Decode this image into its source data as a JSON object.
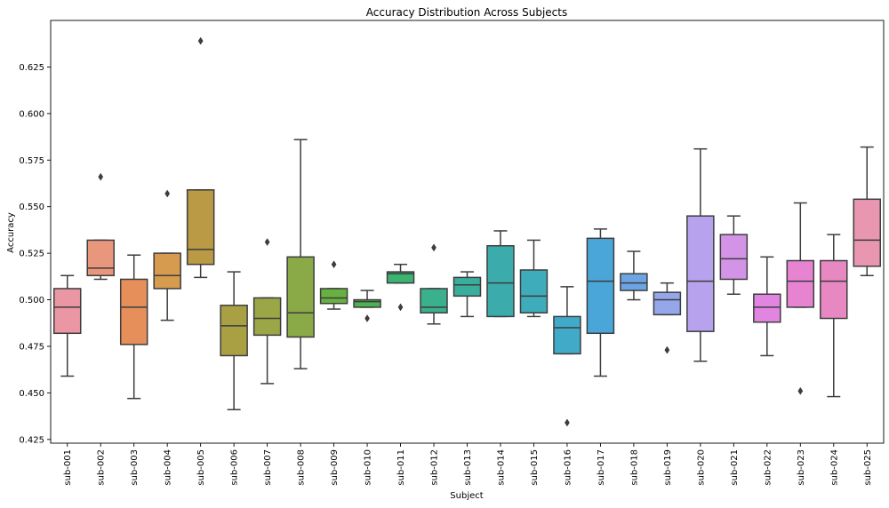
{
  "chart_data": {
    "type": "box",
    "title": "Accuracy Distribution Across Subjects",
    "xlabel": "Subject",
    "ylabel": "Accuracy",
    "ylim": [
      0.423,
      0.65
    ],
    "yticks": [
      0.425,
      0.45,
      0.475,
      0.5,
      0.525,
      0.55,
      0.575,
      0.6,
      0.625
    ],
    "yticklabels": [
      "0.425",
      "0.450",
      "0.475",
      "0.500",
      "0.525",
      "0.550",
      "0.575",
      "0.600",
      "0.625"
    ],
    "grid": false,
    "boxes": [
      {
        "label": "sub-001",
        "color": "#ea96a3",
        "whislo": 0.459,
        "q1": 0.482,
        "med": 0.496,
        "q3": 0.506,
        "whishi": 0.513,
        "fliers": []
      },
      {
        "label": "sub-002",
        "color": "#e8977c",
        "whislo": 0.511,
        "q1": 0.513,
        "med": 0.517,
        "q3": 0.532,
        "whishi": 0.532,
        "fliers": [
          0.566
        ]
      },
      {
        "label": "sub-003",
        "color": "#e68f5a",
        "whislo": 0.447,
        "q1": 0.476,
        "med": 0.496,
        "q3": 0.511,
        "whishi": 0.524,
        "fliers": []
      },
      {
        "label": "sub-004",
        "color": "#d79b4f",
        "whislo": 0.489,
        "q1": 0.506,
        "med": 0.513,
        "q3": 0.525,
        "whishi": 0.525,
        "fliers": [
          0.557
        ]
      },
      {
        "label": "sub-005",
        "color": "#bb9a45",
        "whislo": 0.512,
        "q1": 0.519,
        "med": 0.527,
        "q3": 0.559,
        "whishi": 0.559,
        "fliers": [
          0.639
        ]
      },
      {
        "label": "sub-006",
        "color": "#a9a043",
        "whislo": 0.441,
        "q1": 0.47,
        "med": 0.486,
        "q3": 0.497,
        "whishi": 0.515,
        "fliers": []
      },
      {
        "label": "sub-007",
        "color": "#9ba646",
        "whislo": 0.455,
        "q1": 0.481,
        "med": 0.49,
        "q3": 0.501,
        "whishi": 0.501,
        "fliers": [
          0.531
        ]
      },
      {
        "label": "sub-008",
        "color": "#89aa47",
        "whislo": 0.463,
        "q1": 0.48,
        "med": 0.493,
        "q3": 0.523,
        "whishi": 0.586,
        "fliers": []
      },
      {
        "label": "sub-009",
        "color": "#68b042",
        "whislo": 0.495,
        "q1": 0.498,
        "med": 0.501,
        "q3": 0.506,
        "whishi": 0.506,
        "fliers": [
          0.519
        ]
      },
      {
        "label": "sub-010",
        "color": "#4db24f",
        "whislo": 0.496,
        "q1": 0.496,
        "med": 0.499,
        "q3": 0.5,
        "whishi": 0.505,
        "fliers": [
          0.49
        ]
      },
      {
        "label": "sub-011",
        "color": "#3cb371",
        "whislo": 0.509,
        "q1": 0.509,
        "med": 0.514,
        "q3": 0.515,
        "whishi": 0.519,
        "fliers": [
          0.496
        ]
      },
      {
        "label": "sub-012",
        "color": "#3ab08c",
        "whislo": 0.487,
        "q1": 0.493,
        "med": 0.496,
        "q3": 0.506,
        "whishi": 0.506,
        "fliers": [
          0.528
        ]
      },
      {
        "label": "sub-013",
        "color": "#3aae9c",
        "whislo": 0.491,
        "q1": 0.502,
        "med": 0.508,
        "q3": 0.512,
        "whishi": 0.515,
        "fliers": []
      },
      {
        "label": "sub-014",
        "color": "#3babab",
        "whislo": 0.491,
        "q1": 0.491,
        "med": 0.509,
        "q3": 0.529,
        "whishi": 0.537,
        "fliers": []
      },
      {
        "label": "sub-015",
        "color": "#3eacbb",
        "whislo": 0.491,
        "q1": 0.493,
        "med": 0.502,
        "q3": 0.516,
        "whishi": 0.532,
        "fliers": []
      },
      {
        "label": "sub-016",
        "color": "#41aac9",
        "whislo": 0.471,
        "q1": 0.471,
        "med": 0.485,
        "q3": 0.491,
        "whishi": 0.507,
        "fliers": [
          0.434
        ]
      },
      {
        "label": "sub-017",
        "color": "#4aa6d8",
        "whislo": 0.459,
        "q1": 0.482,
        "med": 0.51,
        "q3": 0.533,
        "whishi": 0.538,
        "fliers": []
      },
      {
        "label": "sub-018",
        "color": "#6da5e4",
        "whislo": 0.5,
        "q1": 0.505,
        "med": 0.509,
        "q3": 0.514,
        "whishi": 0.526,
        "fliers": []
      },
      {
        "label": "sub-019",
        "color": "#95a6ea",
        "whislo": 0.492,
        "q1": 0.492,
        "med": 0.5,
        "q3": 0.504,
        "whishi": 0.509,
        "fliers": [
          0.473
        ]
      },
      {
        "label": "sub-020",
        "color": "#b7a3ed",
        "whislo": 0.467,
        "q1": 0.483,
        "med": 0.51,
        "q3": 0.545,
        "whishi": 0.581,
        "fliers": []
      },
      {
        "label": "sub-021",
        "color": "#d394e8",
        "whislo": 0.503,
        "q1": 0.511,
        "med": 0.522,
        "q3": 0.535,
        "whishi": 0.545,
        "fliers": []
      },
      {
        "label": "sub-022",
        "color": "#e285e0",
        "whislo": 0.47,
        "q1": 0.488,
        "med": 0.496,
        "q3": 0.503,
        "whishi": 0.523,
        "fliers": []
      },
      {
        "label": "sub-023",
        "color": "#e784d1",
        "whislo": 0.496,
        "q1": 0.496,
        "med": 0.51,
        "q3": 0.521,
        "whishi": 0.552,
        "fliers": [
          0.451
        ]
      },
      {
        "label": "sub-024",
        "color": "#e888c2",
        "whislo": 0.448,
        "q1": 0.49,
        "med": 0.51,
        "q3": 0.521,
        "whishi": 0.535,
        "fliers": []
      },
      {
        "label": "sub-025",
        "color": "#e996b1",
        "whislo": 0.513,
        "q1": 0.518,
        "med": 0.532,
        "q3": 0.554,
        "whishi": 0.582,
        "fliers": []
      }
    ]
  }
}
